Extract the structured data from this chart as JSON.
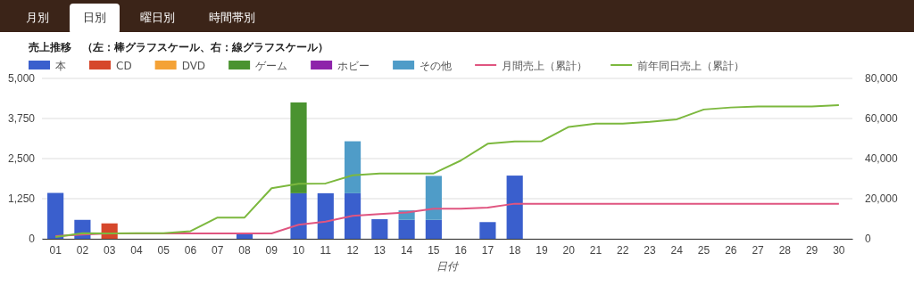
{
  "chart_data": {
    "type": "bar",
    "title": "売上推移　（左：棒グラフスケール、右：線グラフスケール）",
    "xlabel": "日付",
    "annotations": [
      "月別",
      "日別",
      "曜日別",
      "時間帯別"
    ],
    "categories": [
      "01",
      "02",
      "03",
      "04",
      "05",
      "06",
      "07",
      "08",
      "09",
      "10",
      "11",
      "12",
      "13",
      "14",
      "15",
      "16",
      "17",
      "18",
      "19",
      "20",
      "21",
      "22",
      "23",
      "24",
      "25",
      "26",
      "27",
      "28",
      "29",
      "30"
    ],
    "stacked": true,
    "grid": "y",
    "legend": "top left",
    "ylim": [
      0,
      5000
    ],
    "yticks": [
      0,
      {
        "value": 1250,
        "label": "1,250"
      },
      {
        "value": 2500,
        "label": "2,500"
      },
      {
        "value": 3750,
        "label": "3,750"
      },
      {
        "value": 5000,
        "label": "5,000"
      }
    ],
    "y2lim": [
      0,
      80000
    ],
    "y2ticks": [
      0,
      {
        "value": 20000,
        "label": "20,000"
      },
      {
        "value": 40000,
        "label": "40,000"
      },
      {
        "value": 60000,
        "label": "60,000"
      },
      {
        "value": 80000,
        "label": "80,000"
      }
    ],
    "series": [
      {
        "name": "本",
        "color": "#3a5fcd",
        "values": [
          1430,
          590,
          null,
          null,
          null,
          null,
          null,
          190,
          null,
          1420,
          1420,
          1420,
          610,
          590,
          590,
          null,
          520,
          1970,
          null,
          null,
          null,
          null,
          null,
          null,
          null,
          null,
          null,
          null,
          null,
          null
        ]
      },
      {
        "name": "CD",
        "color": "#d6472b",
        "values": [
          null,
          null,
          480,
          null,
          null,
          null,
          null,
          null,
          null,
          null,
          null,
          null,
          null,
          null,
          null,
          null,
          null,
          null,
          null,
          null,
          null,
          null,
          null,
          null,
          null,
          null,
          null,
          null,
          null,
          null
        ]
      },
      {
        "name": "DVD",
        "color": "#f4a236",
        "values": [
          null,
          null,
          null,
          null,
          null,
          null,
          null,
          null,
          null,
          null,
          null,
          null,
          null,
          null,
          null,
          null,
          null,
          null,
          null,
          null,
          null,
          null,
          null,
          null,
          null,
          null,
          null,
          null,
          null,
          null
        ]
      },
      {
        "name": "ゲーム",
        "color": "#4a9330",
        "values": [
          null,
          null,
          null,
          null,
          null,
          null,
          null,
          null,
          null,
          2830,
          null,
          null,
          null,
          null,
          null,
          null,
          null,
          null,
          null,
          null,
          null,
          null,
          null,
          null,
          null,
          null,
          null,
          null,
          null,
          null
        ]
      },
      {
        "name": "ホビー",
        "color": "#8e24aa",
        "values": [
          null,
          null,
          null,
          null,
          null,
          null,
          null,
          null,
          null,
          null,
          null,
          null,
          null,
          null,
          null,
          null,
          null,
          null,
          null,
          null,
          null,
          null,
          null,
          null,
          null,
          null,
          null,
          null,
          null,
          null
        ]
      },
      {
        "name": "その他",
        "color": "#4f9cc8",
        "values": [
          null,
          null,
          null,
          null,
          null,
          null,
          null,
          null,
          null,
          null,
          null,
          1620,
          null,
          295,
          1370,
          null,
          null,
          null,
          null,
          null,
          null,
          null,
          null,
          null,
          null,
          null,
          null,
          null,
          null,
          null
        ]
      },
      {
        "name": "月間売上（累計）",
        "type": "line",
        "axis": "y2",
        "color": "#e05580",
        "values": [
          1300,
          2100,
          2700,
          2700,
          2700,
          2700,
          2700,
          2700,
          2700,
          7000,
          8600,
          11400,
          12300,
          13100,
          15000,
          15000,
          15600,
          17500,
          17500,
          17500,
          17500,
          17500,
          17500,
          17500,
          17500,
          17500,
          17500,
          17500,
          17500,
          17500
        ]
      },
      {
        "name": "前年同日売上（累計）",
        "type": "line",
        "axis": "y2",
        "color": "#7cb83e",
        "values": [
          900,
          2800,
          2700,
          2800,
          2800,
          3800,
          10600,
          10600,
          25200,
          27400,
          27600,
          31700,
          32600,
          32600,
          32600,
          39000,
          47400,
          48600,
          48700,
          55800,
          57400,
          57400,
          58300,
          59600,
          64500,
          65500,
          66000,
          66000,
          66000,
          66700
        ]
      }
    ]
  }
}
